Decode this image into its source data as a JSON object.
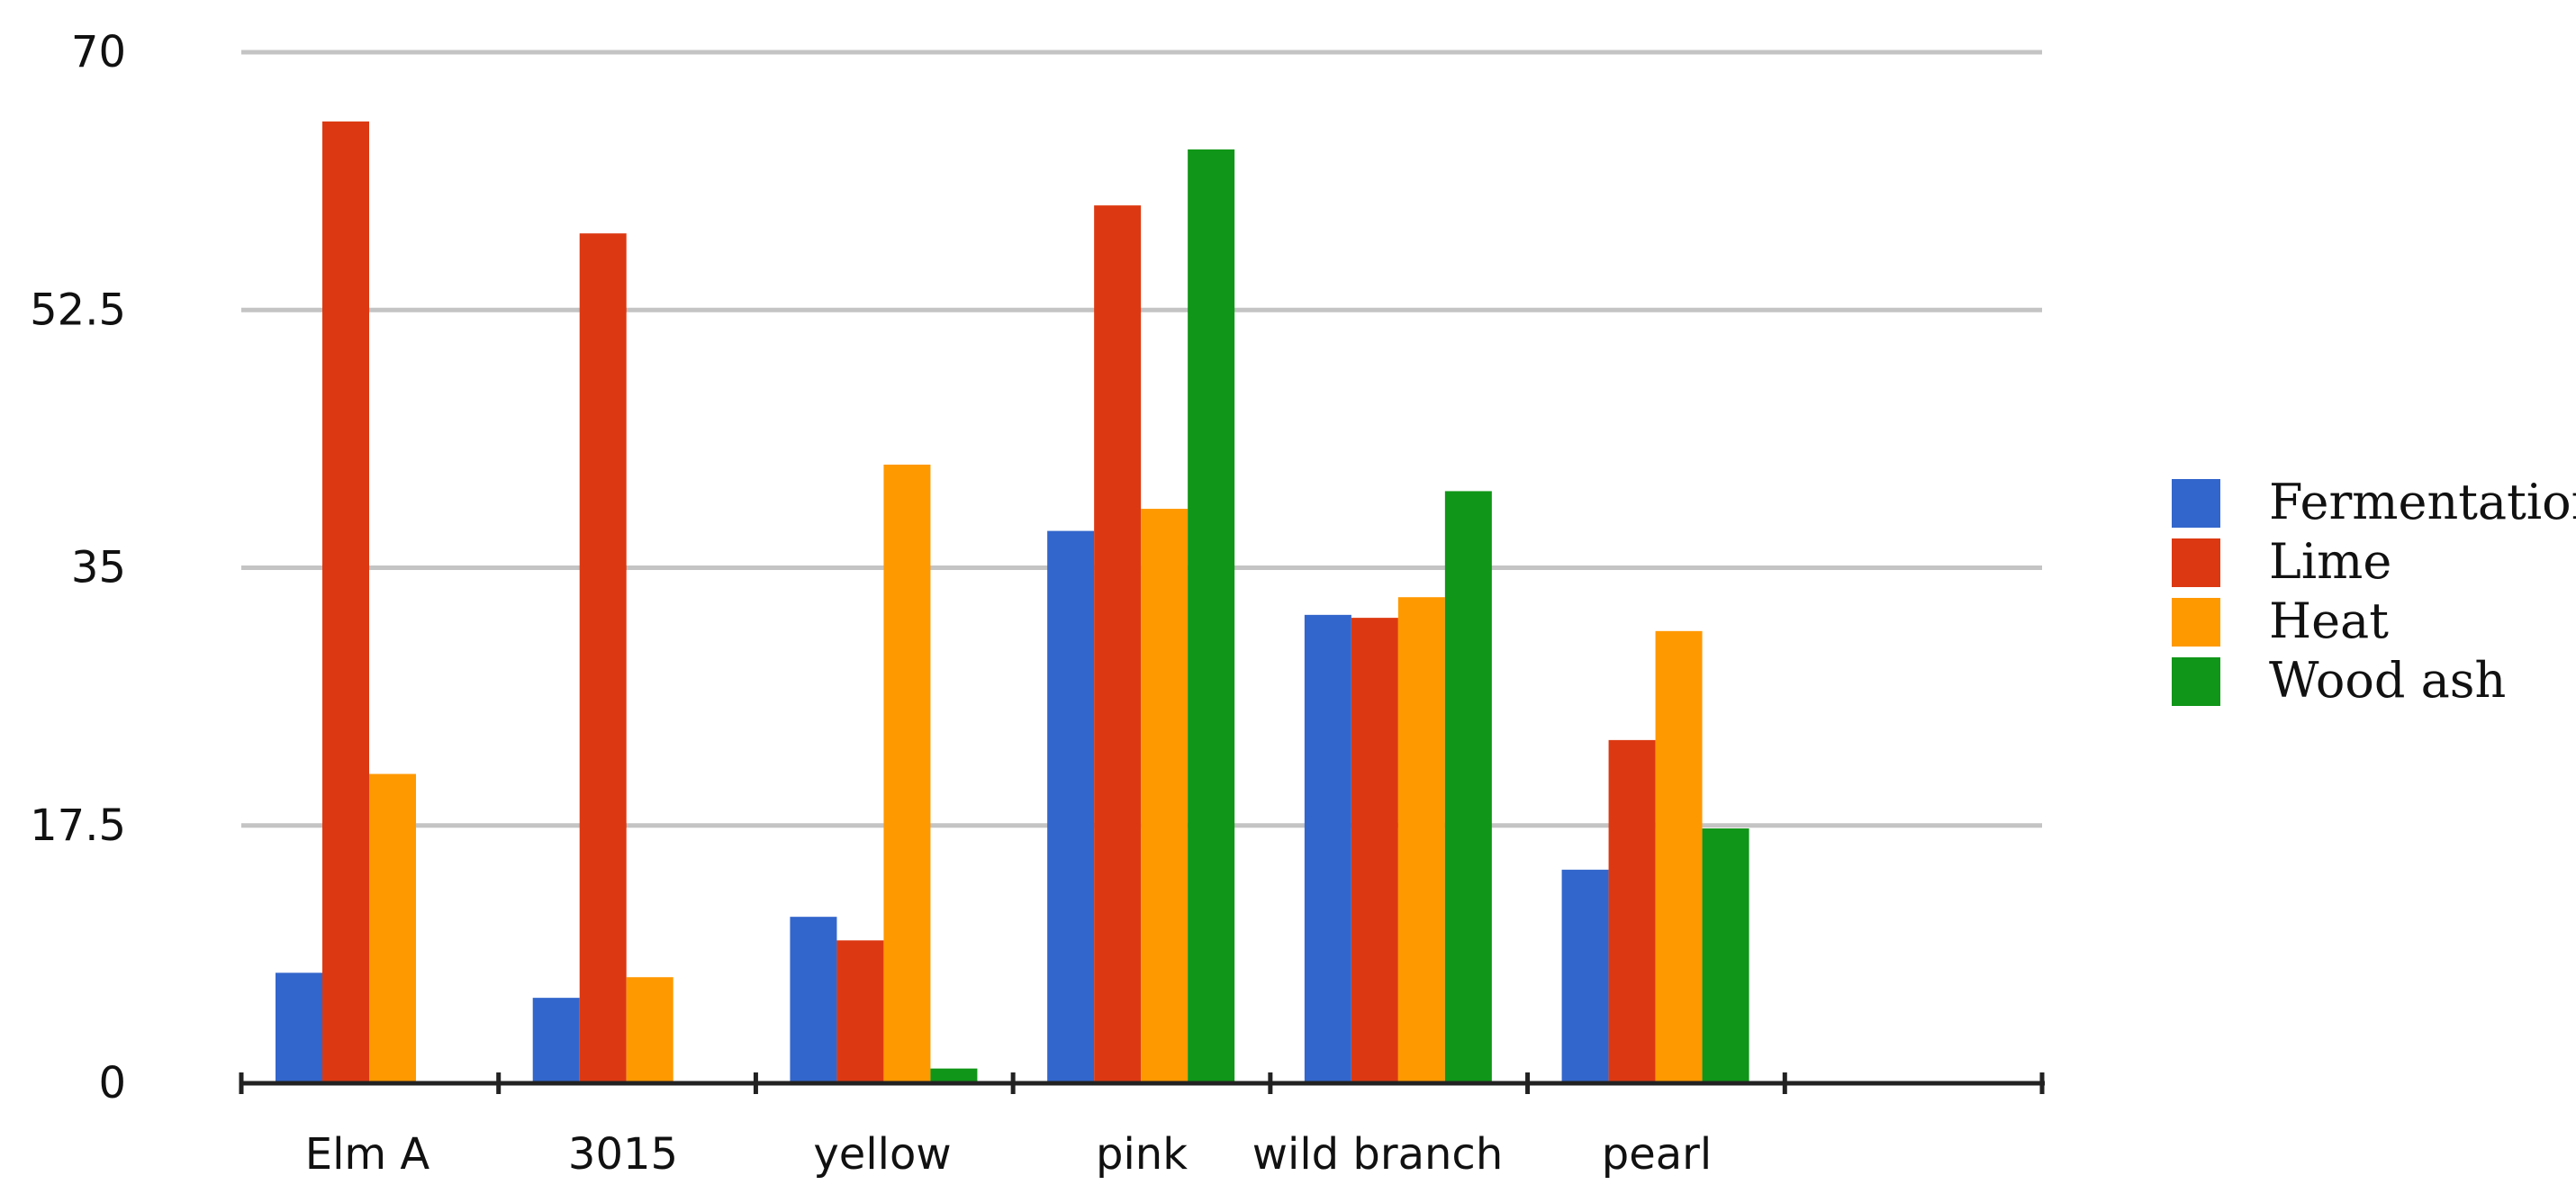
{
  "chart_data": {
    "type": "bar",
    "title": "",
    "xlabel": "",
    "ylabel": "",
    "categories": [
      "Elm A",
      "3015",
      "yellow",
      "pink",
      "wild branch",
      "pearl",
      ""
    ],
    "yticks": [
      "0",
      "17.5",
      "35",
      "52.5",
      "70"
    ],
    "ylim": [
      0,
      70
    ],
    "grid": true,
    "legend_position": "right",
    "series": [
      {
        "name": "Fermentation",
        "color": "#3366cc",
        "values": [
          7.5,
          5.8,
          11.3,
          37.5,
          31.8,
          14.5,
          null
        ]
      },
      {
        "name": "Lime",
        "color": "#dc3912",
        "values": [
          65.3,
          57.7,
          9.7,
          59.6,
          31.6,
          23.3,
          null
        ]
      },
      {
        "name": "Heat",
        "color": "#ff9900",
        "values": [
          21,
          7.2,
          42,
          39,
          33,
          30.7,
          null
        ]
      },
      {
        "name": "Wood ash",
        "color": "#109618",
        "values": [
          0,
          0,
          1,
          63.4,
          40.2,
          17.3,
          null
        ]
      }
    ]
  }
}
